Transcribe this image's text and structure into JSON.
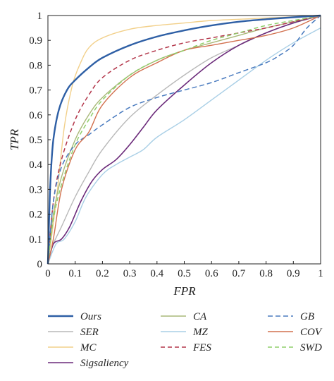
{
  "chart_data": {
    "type": "line",
    "title": "",
    "xlabel": "FPR",
    "ylabel": "TPR",
    "xlim": [
      0,
      1
    ],
    "ylim": [
      0,
      1
    ],
    "x_ticks": [
      "0",
      "0.1",
      "0.2",
      "0.3",
      "0.4",
      "0.5",
      "0.6",
      "0.7",
      "0.8",
      "0.9",
      "1"
    ],
    "y_ticks": [
      "0",
      "0.1",
      "0.2",
      "0.3",
      "0.4",
      "0.5",
      "0.6",
      "0.7",
      "0.8",
      "0.9",
      "1"
    ],
    "grid": false,
    "legend_position": "bottom",
    "series": [
      {
        "name": "Ours",
        "color": "#2e5fa5",
        "dash": "solid",
        "width": 2.4,
        "points": [
          [
            0,
            0
          ],
          [
            0.005,
            0.2
          ],
          [
            0.01,
            0.35
          ],
          [
            0.02,
            0.5
          ],
          [
            0.04,
            0.62
          ],
          [
            0.07,
            0.7
          ],
          [
            0.1,
            0.74
          ],
          [
            0.15,
            0.79
          ],
          [
            0.2,
            0.83
          ],
          [
            0.3,
            0.88
          ],
          [
            0.4,
            0.915
          ],
          [
            0.5,
            0.94
          ],
          [
            0.6,
            0.96
          ],
          [
            0.7,
            0.975
          ],
          [
            0.8,
            0.985
          ],
          [
            0.9,
            0.993
          ],
          [
            1,
            1
          ]
        ]
      },
      {
        "name": "SER",
        "color": "#b8b8b8",
        "dash": "solid",
        "width": 1.4,
        "points": [
          [
            0,
            0
          ],
          [
            0.02,
            0.08
          ],
          [
            0.05,
            0.15
          ],
          [
            0.1,
            0.27
          ],
          [
            0.15,
            0.37
          ],
          [
            0.2,
            0.46
          ],
          [
            0.3,
            0.59
          ],
          [
            0.4,
            0.68
          ],
          [
            0.5,
            0.76
          ],
          [
            0.6,
            0.83
          ],
          [
            0.7,
            0.88
          ],
          [
            0.8,
            0.93
          ],
          [
            0.9,
            0.97
          ],
          [
            1,
            1
          ]
        ]
      },
      {
        "name": "MC",
        "color": "#f2d08a",
        "dash": "solid",
        "width": 1.4,
        "points": [
          [
            0,
            0
          ],
          [
            0.03,
            0.25
          ],
          [
            0.06,
            0.55
          ],
          [
            0.09,
            0.72
          ],
          [
            0.12,
            0.81
          ],
          [
            0.15,
            0.87
          ],
          [
            0.2,
            0.91
          ],
          [
            0.3,
            0.945
          ],
          [
            0.4,
            0.96
          ],
          [
            0.5,
            0.97
          ],
          [
            0.6,
            0.98
          ],
          [
            0.7,
            0.985
          ],
          [
            0.8,
            0.99
          ],
          [
            0.9,
            0.995
          ],
          [
            1,
            1
          ]
        ]
      },
      {
        "name": "Sigsaliency",
        "color": "#6b2a7a",
        "dash": "solid",
        "width": 1.6,
        "points": [
          [
            0,
            0
          ],
          [
            0.02,
            0.08
          ],
          [
            0.05,
            0.1
          ],
          [
            0.08,
            0.15
          ],
          [
            0.12,
            0.25
          ],
          [
            0.16,
            0.33
          ],
          [
            0.2,
            0.38
          ],
          [
            0.25,
            0.42
          ],
          [
            0.3,
            0.48
          ],
          [
            0.35,
            0.55
          ],
          [
            0.4,
            0.62
          ],
          [
            0.5,
            0.72
          ],
          [
            0.6,
            0.81
          ],
          [
            0.7,
            0.88
          ],
          [
            0.8,
            0.93
          ],
          [
            0.9,
            0.97
          ],
          [
            1,
            1
          ]
        ]
      },
      {
        "name": "CA",
        "color": "#a9b878",
        "dash": "solid",
        "width": 1.4,
        "points": [
          [
            0,
            0
          ],
          [
            0.02,
            0.2
          ],
          [
            0.05,
            0.35
          ],
          [
            0.1,
            0.5
          ],
          [
            0.15,
            0.6
          ],
          [
            0.2,
            0.67
          ],
          [
            0.3,
            0.76
          ],
          [
            0.4,
            0.82
          ],
          [
            0.5,
            0.86
          ],
          [
            0.6,
            0.89
          ],
          [
            0.7,
            0.92
          ],
          [
            0.8,
            0.95
          ],
          [
            0.9,
            0.975
          ],
          [
            1,
            1
          ]
        ]
      },
      {
        "name": "MZ",
        "color": "#a9cfe6",
        "dash": "solid",
        "width": 1.4,
        "points": [
          [
            0,
            0
          ],
          [
            0.03,
            0.08
          ],
          [
            0.06,
            0.1
          ],
          [
            0.1,
            0.17
          ],
          [
            0.14,
            0.27
          ],
          [
            0.2,
            0.36
          ],
          [
            0.25,
            0.4
          ],
          [
            0.3,
            0.43
          ],
          [
            0.35,
            0.46
          ],
          [
            0.4,
            0.51
          ],
          [
            0.5,
            0.58
          ],
          [
            0.6,
            0.66
          ],
          [
            0.7,
            0.74
          ],
          [
            0.8,
            0.82
          ],
          [
            0.9,
            0.89
          ],
          [
            1,
            0.95
          ]
        ]
      },
      {
        "name": "FES",
        "color": "#b3364a",
        "dash": "6,4",
        "width": 1.5,
        "points": [
          [
            0,
            0
          ],
          [
            0.02,
            0.25
          ],
          [
            0.05,
            0.42
          ],
          [
            0.1,
            0.58
          ],
          [
            0.15,
            0.68
          ],
          [
            0.2,
            0.75
          ],
          [
            0.3,
            0.82
          ],
          [
            0.4,
            0.86
          ],
          [
            0.5,
            0.89
          ],
          [
            0.6,
            0.91
          ],
          [
            0.7,
            0.93
          ],
          [
            0.8,
            0.95
          ],
          [
            0.9,
            0.975
          ],
          [
            1,
            1
          ]
        ]
      },
      {
        "name": "GB",
        "color": "#4a7bbf",
        "dash": "7,4",
        "width": 1.5,
        "points": [
          [
            0,
            0
          ],
          [
            0.02,
            0.25
          ],
          [
            0.05,
            0.39
          ],
          [
            0.1,
            0.48
          ],
          [
            0.15,
            0.52
          ],
          [
            0.2,
            0.56
          ],
          [
            0.3,
            0.63
          ],
          [
            0.4,
            0.67
          ],
          [
            0.5,
            0.7
          ],
          [
            0.6,
            0.73
          ],
          [
            0.7,
            0.77
          ],
          [
            0.8,
            0.81
          ],
          [
            0.85,
            0.84
          ],
          [
            0.9,
            0.88
          ],
          [
            0.95,
            0.95
          ],
          [
            1,
            1
          ]
        ]
      },
      {
        "name": "COV",
        "color": "#d2714f",
        "dash": "solid",
        "width": 1.4,
        "points": [
          [
            0,
            0
          ],
          [
            0.02,
            0.1
          ],
          [
            0.05,
            0.3
          ],
          [
            0.1,
            0.46
          ],
          [
            0.15,
            0.53
          ],
          [
            0.2,
            0.64
          ],
          [
            0.3,
            0.75
          ],
          [
            0.4,
            0.81
          ],
          [
            0.5,
            0.86
          ],
          [
            0.6,
            0.88
          ],
          [
            0.7,
            0.9
          ],
          [
            0.8,
            0.92
          ],
          [
            0.9,
            0.95
          ],
          [
            1,
            1
          ]
        ]
      },
      {
        "name": "SWD",
        "color": "#8fcf6b",
        "dash": "6,4",
        "width": 1.5,
        "points": [
          [
            0,
            0
          ],
          [
            0.02,
            0.18
          ],
          [
            0.05,
            0.32
          ],
          [
            0.1,
            0.48
          ],
          [
            0.15,
            0.58
          ],
          [
            0.2,
            0.66
          ],
          [
            0.3,
            0.76
          ],
          [
            0.4,
            0.82
          ],
          [
            0.5,
            0.86
          ],
          [
            0.6,
            0.9
          ],
          [
            0.7,
            0.93
          ],
          [
            0.8,
            0.96
          ],
          [
            0.9,
            0.98
          ],
          [
            1,
            1
          ]
        ]
      }
    ]
  }
}
